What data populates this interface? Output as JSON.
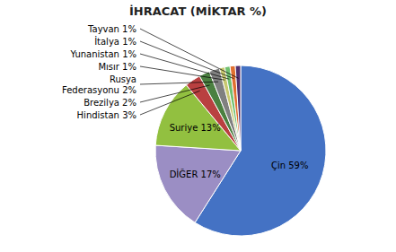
{
  "chart_data": {
    "type": "pie",
    "title": "İHRACAT (MİKTAR %)",
    "categories": [
      "Çin 59%",
      "DİĞER 17%",
      "Suriye 13%",
      "Hindistan 3%",
      "Brezilya 2%",
      "Rusya\nFederasyonu 2%",
      "Mısır 1%",
      "Yunanistan 1%",
      "İtalya 1%",
      "Tayvan 1%"
    ],
    "values": [
      59,
      17,
      13,
      3,
      2,
      2,
      1,
      1,
      1,
      1
    ],
    "colors": [
      "#4472C4",
      "#9B8EC4",
      "#92C040",
      "#B94040",
      "#4B8040",
      "#808080",
      "#C8C870",
      "#70C070",
      "#E07030",
      "#503070"
    ]
  }
}
